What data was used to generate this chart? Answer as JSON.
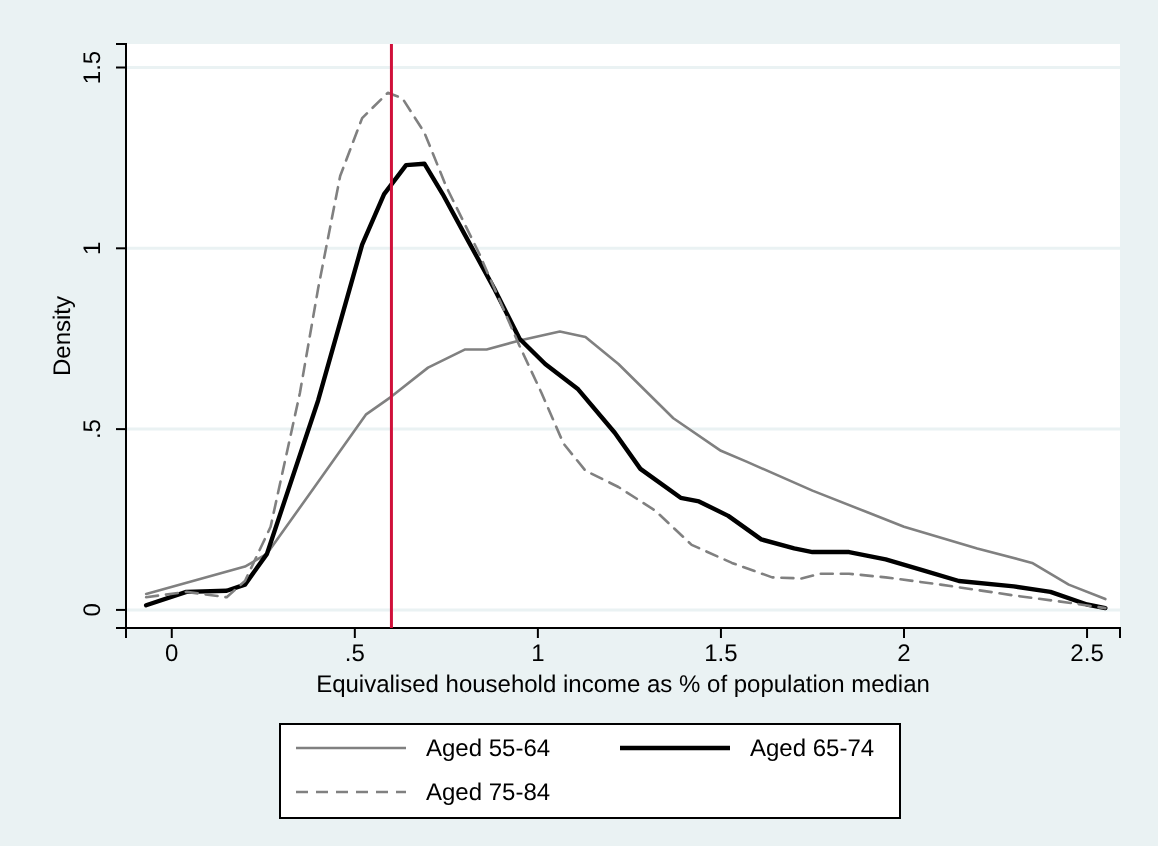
{
  "chart_data": {
    "type": "line",
    "xlabel": "Equivalised household income as % of population median",
    "ylabel": "Density",
    "xlim": [
      -0.125,
      2.59
    ],
    "ylim": [
      -0.05,
      1.565
    ],
    "xticks": [
      0,
      {
        "value": 0.5,
        "label": ".5"
      },
      1,
      1.5,
      2,
      2.5
    ],
    "yticks": [
      0,
      {
        "value": 0.5,
        "label": ".5"
      },
      1,
      1.5
    ],
    "grid": "y",
    "legend": "bottom",
    "ref_lines": [
      {
        "axis": "x",
        "value": 0.6,
        "color": "#d0103a"
      }
    ],
    "series": [
      {
        "name": "Aged 55-64",
        "color": "#808080",
        "line_style": "solid",
        "x": [
          -0.07,
          0.2,
          0.26,
          0.39,
          0.53,
          0.6,
          0.7,
          0.8,
          0.86,
          0.95,
          1.06,
          1.13,
          1.22,
          1.37,
          1.5,
          1.57,
          1.75,
          1.9,
          2.0,
          2.2,
          2.35,
          2.45,
          2.55
        ],
        "values": [
          0.044,
          0.12,
          0.155,
          0.34,
          0.54,
          0.59,
          0.67,
          0.72,
          0.72,
          0.745,
          0.77,
          0.755,
          0.68,
          0.53,
          0.44,
          0.41,
          0.33,
          0.27,
          0.23,
          0.17,
          0.13,
          0.07,
          0.03
        ]
      },
      {
        "name": "Aged 65-74",
        "color": "#000000",
        "line_style": "solid",
        "x": [
          -0.07,
          0.04,
          0.15,
          0.2,
          0.26,
          0.4,
          0.52,
          0.58,
          0.64,
          0.69,
          0.74,
          0.81,
          0.88,
          0.95,
          1.02,
          1.11,
          1.21,
          1.28,
          1.39,
          1.44,
          1.52,
          1.61,
          1.7,
          1.75,
          1.85,
          1.95,
          2.05,
          2.15,
          2.3,
          2.4,
          2.5,
          2.55
        ],
        "values": [
          0.013,
          0.05,
          0.053,
          0.07,
          0.155,
          0.58,
          1.01,
          1.15,
          1.23,
          1.234,
          1.15,
          1.02,
          0.89,
          0.75,
          0.68,
          0.61,
          0.49,
          0.39,
          0.31,
          0.3,
          0.26,
          0.195,
          0.17,
          0.16,
          0.16,
          0.14,
          0.11,
          0.08,
          0.065,
          0.05,
          0.015,
          0.005
        ]
      },
      {
        "name": "Aged 75-84",
        "color": "#808080",
        "line_style": "dashed",
        "x": [
          -0.07,
          0.04,
          0.15,
          0.2,
          0.27,
          0.35,
          0.4,
          0.46,
          0.52,
          0.59,
          0.63,
          0.69,
          0.75,
          0.84,
          0.95,
          1.01,
          1.07,
          1.13,
          1.22,
          1.32,
          1.42,
          1.53,
          1.64,
          1.72,
          1.77,
          1.85,
          1.95,
          2.1,
          2.3,
          2.45,
          2.55
        ],
        "values": [
          0.035,
          0.05,
          0.035,
          0.08,
          0.23,
          0.6,
          0.89,
          1.2,
          1.36,
          1.43,
          1.415,
          1.32,
          1.17,
          0.985,
          0.73,
          0.6,
          0.46,
          0.385,
          0.34,
          0.275,
          0.18,
          0.13,
          0.09,
          0.087,
          0.1,
          0.1,
          0.09,
          0.07,
          0.04,
          0.02,
          0.005
        ]
      }
    ]
  }
}
